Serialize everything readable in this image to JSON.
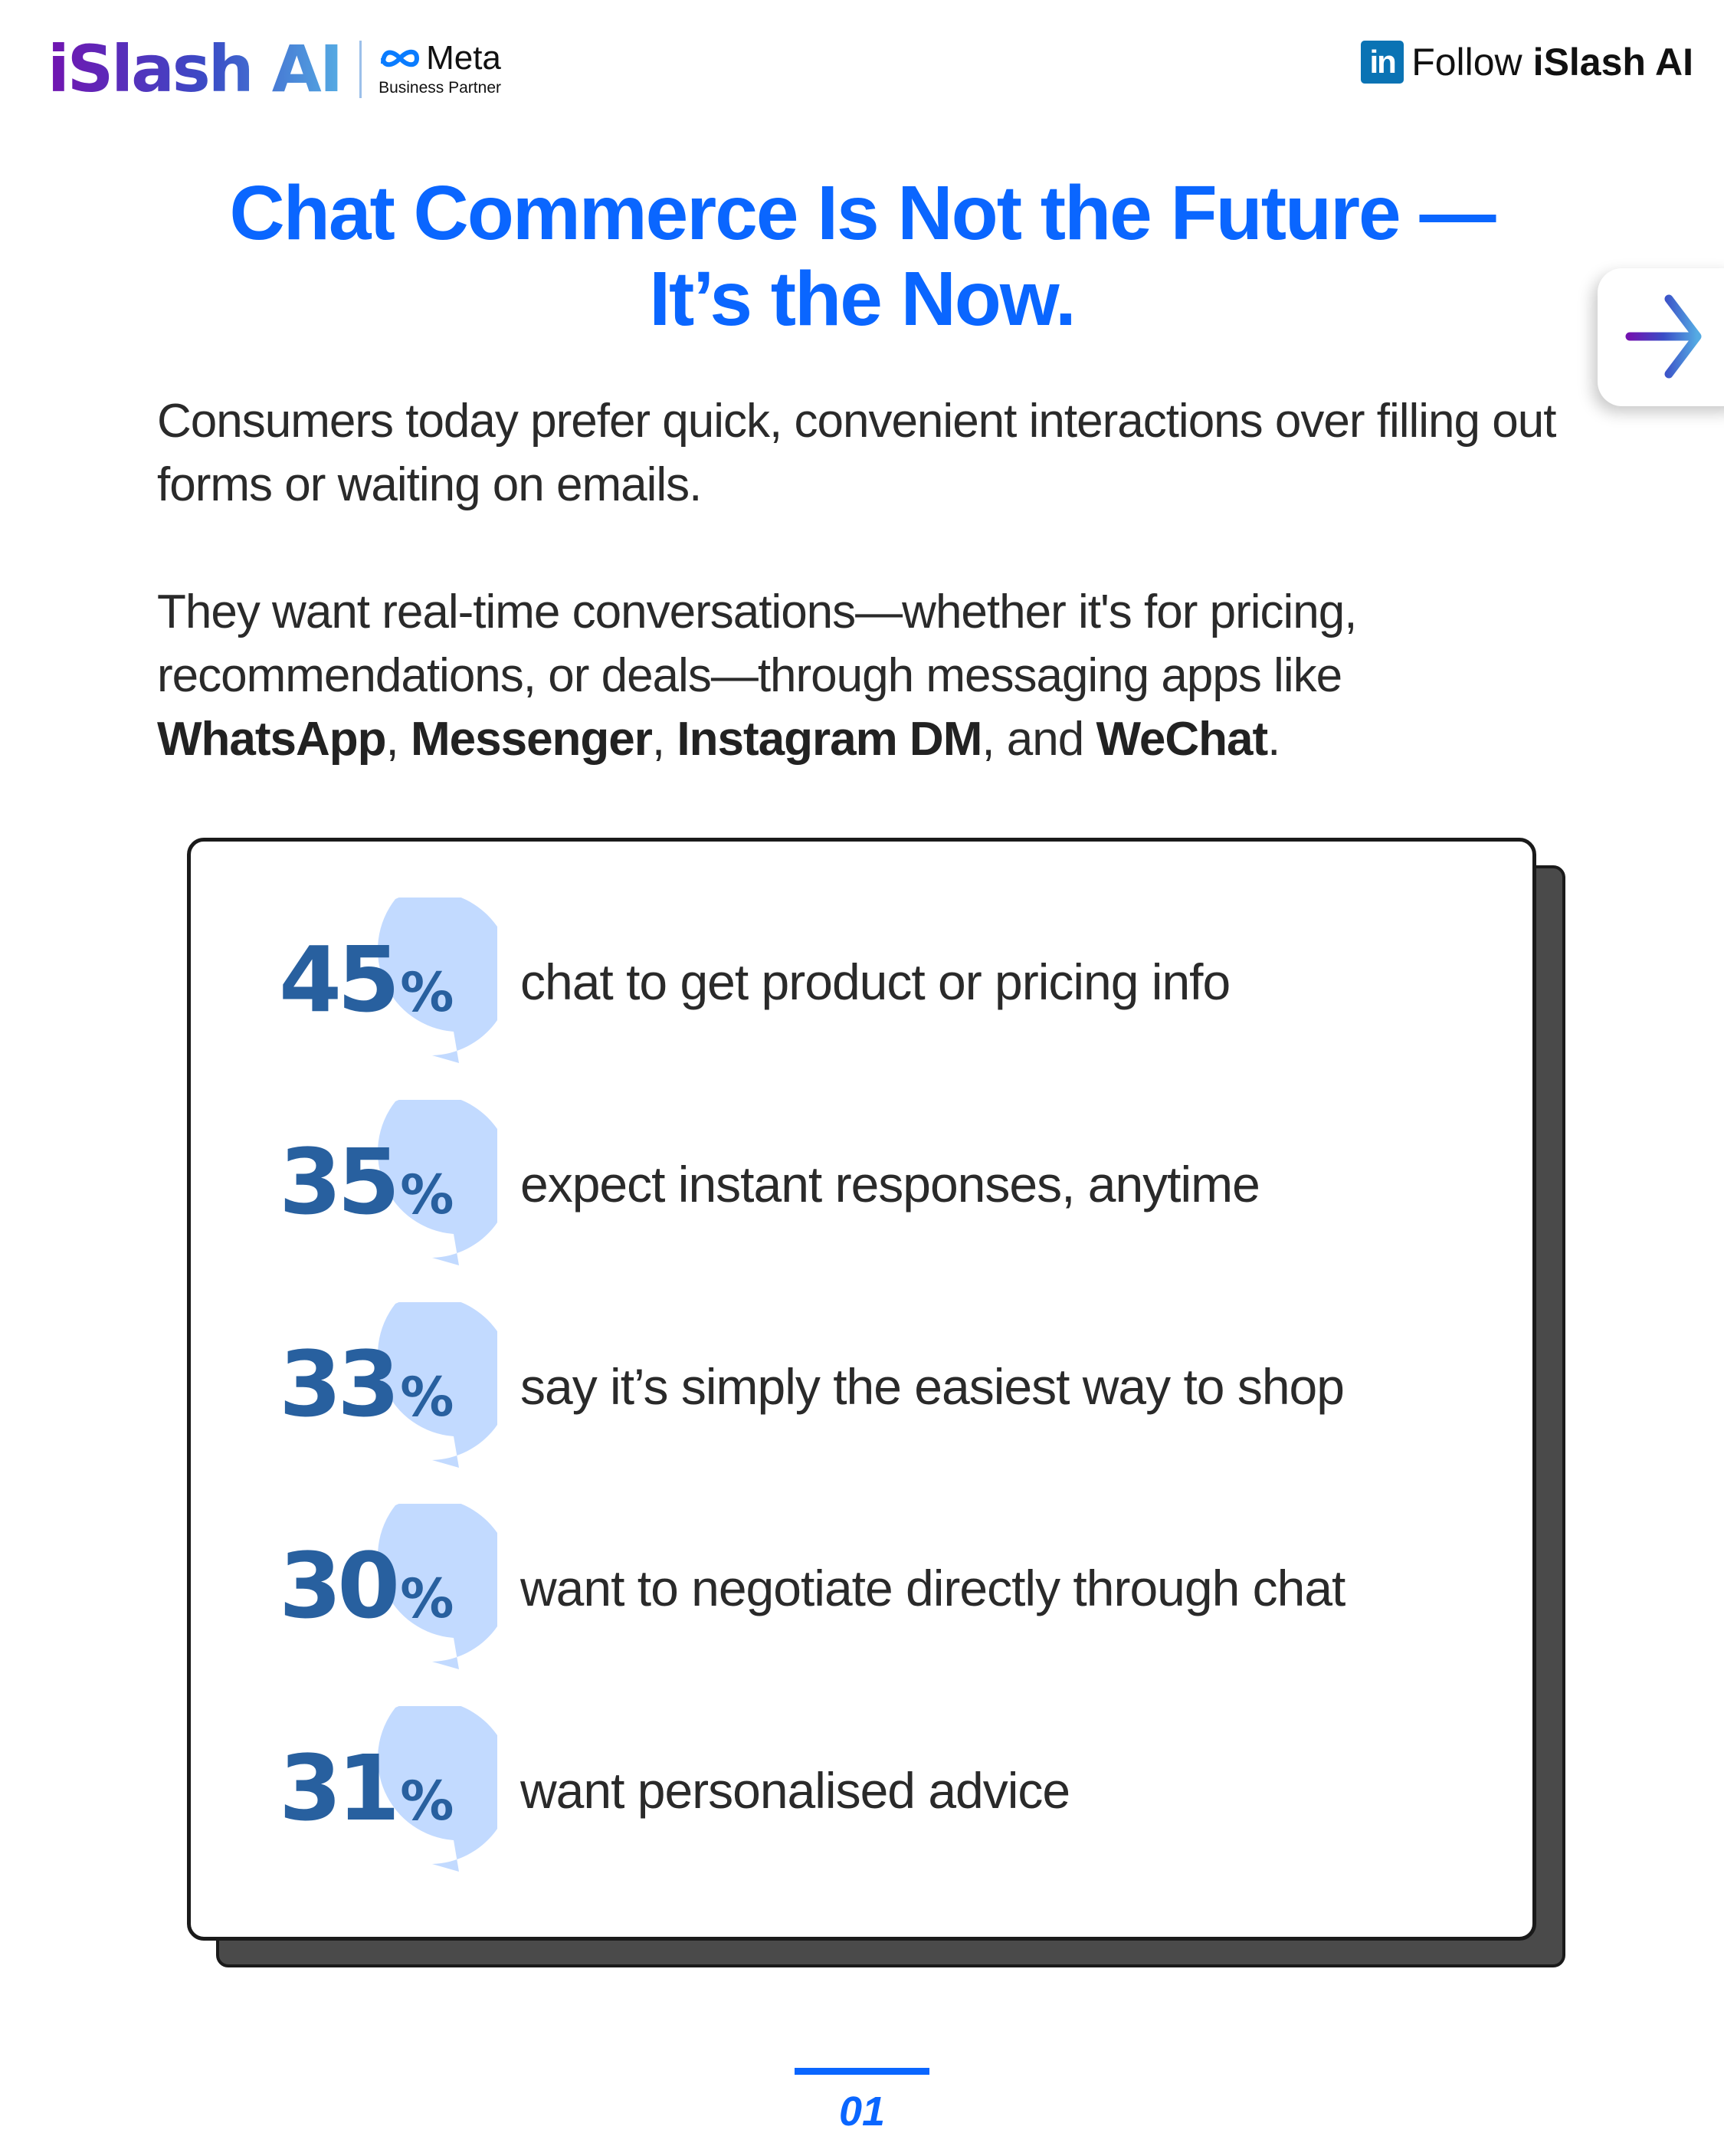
{
  "header": {
    "brand": "iSlash AI",
    "partner": "Meta",
    "partner_sub": "Business Partner",
    "follow_icon": "linkedin-icon",
    "follow_icon_text": "in",
    "follow_label": "Follow",
    "follow_name": "iSlash AI"
  },
  "title": {
    "line1": "Chat Commerce Is Not the Future —",
    "line2": "It’s the Now."
  },
  "intro": {
    "p1": "Consumers today prefer quick, convenient interactions over filling out forms or waiting on emails.",
    "p2_start": "They want real-time conversations—whether it's for pricing, recommendations, or deals—through messaging apps like ",
    "apps": [
      "WhatsApp",
      "Messenger",
      "Instagram DM",
      "WeChat"
    ],
    "sep1": ", ",
    "sep2": ", ",
    "sep3": ", and ",
    "end": "."
  },
  "stats": [
    {
      "value": "45",
      "unit": "%",
      "text": "chat to get product or pricing info"
    },
    {
      "value": "35",
      "unit": "%",
      "text": "expect instant responses, anytime"
    },
    {
      "value": "33",
      "unit": "%",
      "text": "say it’s simply the easiest way to shop"
    },
    {
      "value": "30",
      "unit": "%",
      "text": "want to negotiate directly through chat"
    },
    {
      "value": "31",
      "unit": "%",
      "text": "want personalised advice"
    }
  ],
  "next_icon": "arrow-right-icon",
  "page": {
    "number": "01"
  },
  "colors": {
    "accent": "#0a66ff",
    "stat_number": "#28609f",
    "bubble": "#c2daff",
    "card_shadow": "#4a4a4a"
  }
}
